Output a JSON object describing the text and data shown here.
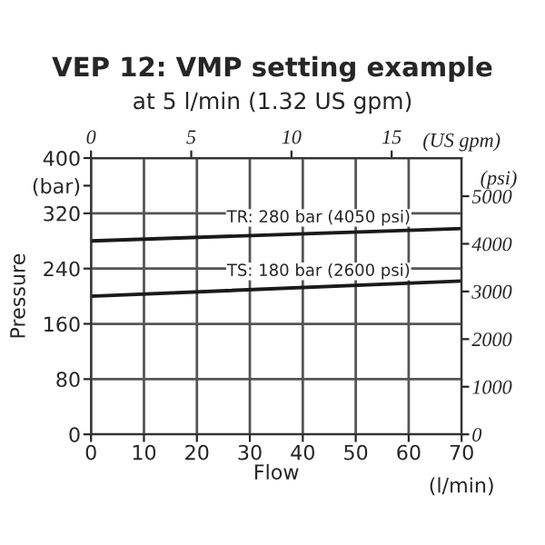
{
  "chart_data": {
    "type": "line",
    "title": "VEP 12: VMP setting example",
    "subtitle": "at 5 l/min (1.32 US gpm)",
    "ylabel": "Pressure",
    "xlabel": "Flow",
    "y2label": "(psi)",
    "x2label": "(US gpm)",
    "annotations": [
      "(l/min)"
    ],
    "x": [
      0,
      70
    ],
    "series": [
      {
        "name": "TR: 280 bar (4050 psi)",
        "color": "#1a1a1a",
        "values": [
          280,
          298
        ]
      },
      {
        "name": "TS: 180 bar (2600 psi)",
        "color": "#1a1a1a",
        "values": [
          200,
          222
        ]
      }
    ],
    "xlim": [
      0,
      70
    ],
    "xticks": [
      0,
      10,
      20,
      30,
      40,
      50,
      60,
      70
    ],
    "ylim": [
      0,
      400
    ],
    "yticks": [
      0,
      80,
      160,
      240,
      320,
      {
        "value": 360,
        "label": "(bar)"
      },
      400
    ],
    "x2lim": [
      0,
      18.49
    ],
    "x2ticks": [
      0,
      5,
      10,
      15
    ],
    "y2lim": [
      0,
      5801
    ],
    "y2ticks": [
      0,
      1000,
      2000,
      3000,
      4000,
      5000
    ],
    "grid": true,
    "marker": "none",
    "line_style": "solid",
    "legend": false
  }
}
